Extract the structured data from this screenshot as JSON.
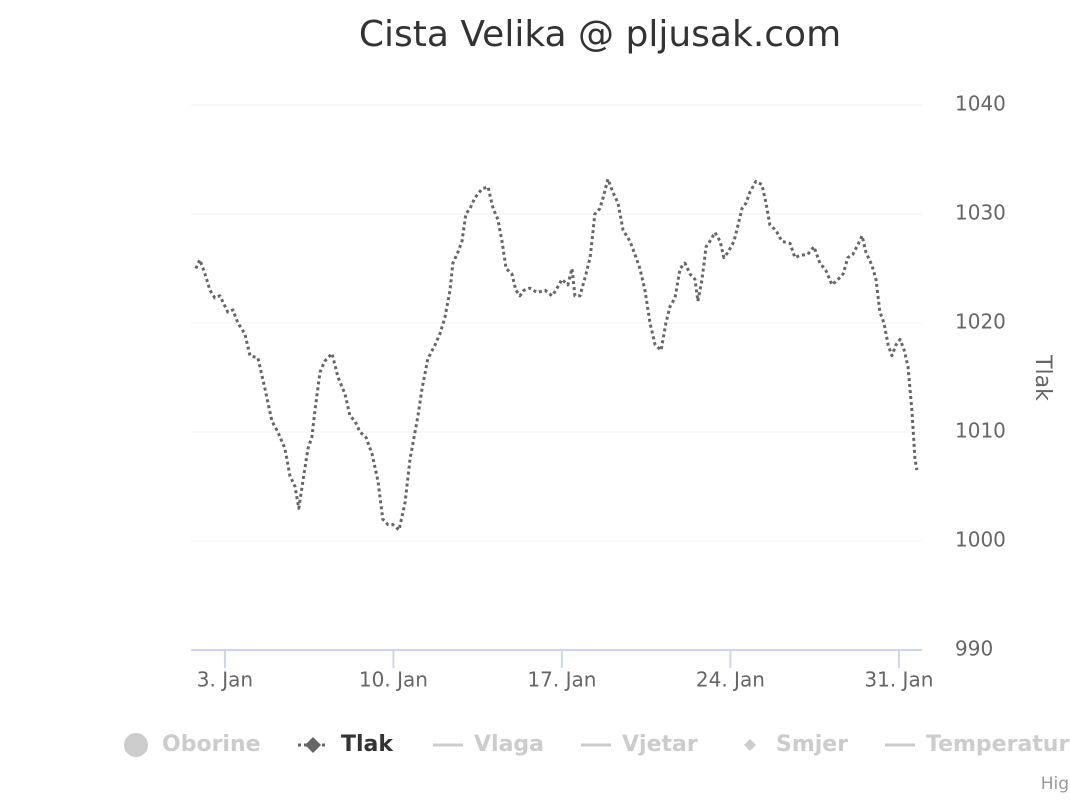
{
  "chart_data": {
    "type": "line",
    "title": "Cista Velika @ pljusak.com",
    "y_axis_title": "Tlak",
    "color": "#666666",
    "dash": true,
    "grid": true,
    "x": [
      1.79,
      1.96,
      2.17,
      2.38,
      2.58,
      2.79,
      3.12,
      3.33,
      3.54,
      3.83,
      4.04,
      4.37,
      4.66,
      4.95,
      5.2,
      5.49,
      5.7,
      5.91,
      6.07,
      6.24,
      6.45,
      6.61,
      6.74,
      6.95,
      7.15,
      7.45,
      7.7,
      7.99,
      8.19,
      8.4,
      8.61,
      8.86,
      9.11,
      9.36,
      9.56,
      9.77,
      9.98,
      10.23,
      10.48,
      10.69,
      11.02,
      11.19,
      11.43,
      11.73,
      11.93,
      12.14,
      12.35,
      12.47,
      12.68,
      12.85,
      13.01,
      13.18,
      13.39,
      13.68,
      13.93,
      14.14,
      14.34,
      14.51,
      14.68,
      14.92,
      15.09,
      15.26,
      15.42,
      15.67,
      15.96,
      16.3,
      16.59,
      16.75,
      17.0,
      17.25,
      17.42,
      17.54,
      17.75,
      18.0,
      18.17,
      18.37,
      18.58,
      18.71,
      18.91,
      19.12,
      19.33,
      19.54,
      19.83,
      20.08,
      20.24,
      20.45,
      20.66,
      20.87,
      21.12,
      21.32,
      21.49,
      21.7,
      21.91,
      22.11,
      22.32,
      22.53,
      22.65,
      22.82,
      22.99,
      23.15,
      23.36,
      23.57,
      23.73,
      23.9,
      24.15,
      24.32,
      24.48,
      24.65,
      24.81,
      25.06,
      25.31,
      25.48,
      25.64,
      25.89,
      26.14,
      26.48,
      26.68,
      26.89,
      27.22,
      27.47,
      27.72,
      27.97,
      28.22,
      28.47,
      28.68,
      28.88,
      29.09,
      29.3,
      29.47,
      29.63,
      29.88,
      30.05,
      30.21,
      30.38,
      30.55,
      30.71,
      30.88,
      31.05,
      31.22,
      31.38,
      31.54,
      31.67,
      31.75
    ],
    "values": [
      1025,
      1025.8,
      1024.5,
      1023,
      1022.3,
      1022.5,
      1021,
      1021.2,
      1020,
      1019,
      1017,
      1016.8,
      1014,
      1011,
      1010,
      1008.5,
      1006,
      1005,
      1003,
      1005.5,
      1008.5,
      1009.5,
      1012,
      1015.5,
      1016.5,
      1017.2,
      1015,
      1013.5,
      1011.5,
      1011,
      1010,
      1009.5,
      1008,
      1005.5,
      1002,
      1001.5,
      1001.5,
      1001,
      1003.5,
      1007.5,
      1011.5,
      1014,
      1016.7,
      1018,
      1019,
      1020.5,
      1023,
      1025.5,
      1026.5,
      1027.5,
      1030,
      1030.5,
      1031.5,
      1032.3,
      1032.5,
      1030.5,
      1029.5,
      1027.5,
      1025,
      1024.5,
      1023,
      1022.5,
      1023,
      1023.2,
      1022.8,
      1023,
      1022.5,
      1023,
      1024,
      1023.5,
      1025,
      1022.5,
      1022.5,
      1024.5,
      1026,
      1030,
      1030.5,
      1031.5,
      1033.2,
      1032,
      1031,
      1028.5,
      1027.5,
      1026,
      1025,
      1023,
      1020,
      1018,
      1017.5,
      1020,
      1021.5,
      1022.3,
      1025,
      1025.5,
      1024.5,
      1024,
      1022,
      1024,
      1027,
      1027.5,
      1028.3,
      1027.5,
      1026,
      1026.5,
      1027.5,
      1029,
      1030.5,
      1031,
      1032,
      1033,
      1032.7,
      1031,
      1029,
      1028.5,
      1027.5,
      1027.3,
      1026,
      1026.2,
      1026.3,
      1027,
      1025.5,
      1024.8,
      1023.5,
      1024,
      1024.5,
      1026,
      1026.3,
      1027.2,
      1028,
      1026.5,
      1025.3,
      1024,
      1021,
      1020,
      1018,
      1017,
      1018,
      1018.5,
      1017.5,
      1016,
      1012,
      1007.5,
      1006.5
    ],
    "xlim": [
      1.59,
      31.96
    ],
    "xticks": [
      {
        "value": 3,
        "label": "3. Jan"
      },
      {
        "value": 10,
        "label": "10. Jan"
      },
      {
        "value": 17,
        "label": "17. Jan"
      },
      {
        "value": 24,
        "label": "24. Jan"
      },
      {
        "value": 31,
        "label": "31. Jan"
      }
    ],
    "ylim": [
      990,
      1040
    ],
    "yticks": [
      990,
      1000,
      1010,
      1020,
      1030,
      1040
    ],
    "legend": [
      {
        "name": "Oborine",
        "symbol": "circle",
        "active": false
      },
      {
        "name": "Tlak",
        "symbol": "dash-diamond",
        "active": true
      },
      {
        "name": "Vlaga",
        "symbol": "line",
        "active": false
      },
      {
        "name": "Vjetar",
        "symbol": "line",
        "active": false
      },
      {
        "name": "Smjer",
        "symbol": "diamond",
        "active": false
      },
      {
        "name": "Temperatur",
        "symbol": "line",
        "active": false
      }
    ],
    "credits": "Hig"
  }
}
